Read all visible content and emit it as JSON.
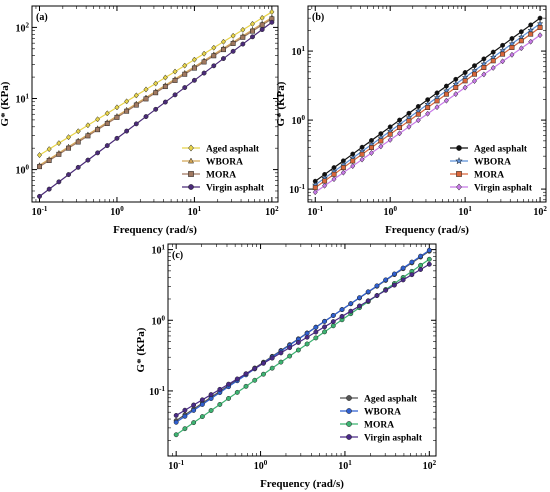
{
  "chart_data": [
    {
      "id": "a",
      "panel_label": "(a)",
      "type": "line",
      "xlabel": "Frequency (rad/s)",
      "ylabel": "G* (KPa)",
      "xscale": "log",
      "yscale": "log",
      "xlim": [
        0.08,
        120
      ],
      "ylim": [
        0.35,
        200
      ],
      "xticks": [
        {
          "value": 0.1,
          "label": "10^-1"
        },
        {
          "value": 1,
          "label": "10^0"
        },
        {
          "value": 10,
          "label": "10^1"
        },
        {
          "value": 100,
          "label": "10^2"
        }
      ],
      "yticks": [
        {
          "value": 1,
          "label": "10^0"
        },
        {
          "value": 10,
          "label": "10^1"
        },
        {
          "value": 100,
          "label": "10^2"
        }
      ],
      "legend_position": "bottom-right",
      "n_points": 25,
      "series": [
        {
          "name": "Aged asphalt",
          "color": "#e8d44a",
          "marker": "diamond",
          "x_range": [
            0.1,
            100
          ],
          "y_range": [
            1.6,
            165
          ]
        },
        {
          "name": "WBORA",
          "color": "#d4a657",
          "marker": "triangle",
          "x_range": [
            0.1,
            100
          ],
          "y_range": [
            1.15,
            138
          ]
        },
        {
          "name": "MORA",
          "color": "#a07860",
          "marker": "square",
          "x_range": [
            0.1,
            100
          ],
          "y_range": [
            1.1,
            132
          ]
        },
        {
          "name": "Virgin asphalt",
          "color": "#4a2a78",
          "marker": "circle",
          "x_range": [
            0.1,
            100
          ],
          "y_range": [
            0.42,
            118
          ]
        }
      ]
    },
    {
      "id": "b",
      "panel_label": "(b)",
      "type": "line",
      "xlabel": "Frequency (rad/s)",
      "ylabel": "G* (KPa)",
      "xscale": "log",
      "yscale": "log",
      "xlim": [
        0.08,
        120
      ],
      "ylim": [
        0.065,
        45
      ],
      "xticks": [
        {
          "value": 0.1,
          "label": "10^-1"
        },
        {
          "value": 1,
          "label": "10^0"
        },
        {
          "value": 10,
          "label": "10^1"
        },
        {
          "value": 100,
          "label": "10^2"
        }
      ],
      "yticks": [
        {
          "value": 0.1,
          "label": "10^-1"
        },
        {
          "value": 1,
          "label": "10^0"
        },
        {
          "value": 10,
          "label": "10^1"
        }
      ],
      "legend_position": "bottom-right",
      "n_points": 25,
      "series": [
        {
          "name": "Aged asphalt",
          "color": "#111111",
          "marker": "circle",
          "x_range": [
            0.1,
            100
          ],
          "y_range": [
            0.13,
            30
          ]
        },
        {
          "name": "WBORA",
          "color": "#5b8fd8",
          "marker": "star",
          "x_range": [
            0.1,
            100
          ],
          "y_range": [
            0.115,
            25
          ]
        },
        {
          "name": "MORA",
          "color": "#d9663a",
          "marker": "square",
          "x_range": [
            0.1,
            100
          ],
          "y_range": [
            0.105,
            22
          ]
        },
        {
          "name": "Virgin asphalt",
          "color": "#c87ae8",
          "marker": "diamond",
          "x_range": [
            0.1,
            100
          ],
          "y_range": [
            0.09,
            17
          ]
        }
      ]
    },
    {
      "id": "c",
      "panel_label": "(c)",
      "type": "line",
      "xlabel": "Frequency (rad/s)",
      "ylabel": "G* (KPa)",
      "xscale": "log",
      "yscale": "log",
      "xlim": [
        0.08,
        120
      ],
      "ylim": [
        0.012,
        12
      ],
      "xticks": [
        {
          "value": 0.1,
          "label": "10^-1"
        },
        {
          "value": 1,
          "label": "10^0"
        },
        {
          "value": 10,
          "label": "10^1"
        },
        {
          "value": 100,
          "label": "10^2"
        }
      ],
      "yticks": [
        {
          "value": 0.1,
          "label": "10^-1"
        },
        {
          "value": 1,
          "label": "10^0"
        },
        {
          "value": 10,
          "label": "10^1"
        }
      ],
      "legend_position": "bottom-right",
      "n_points": 30,
      "series": [
        {
          "name": "Aged asphalt",
          "color": "#555555",
          "marker": "circle",
          "x_range": [
            0.1,
            100
          ],
          "y_range": [
            0.038,
            9.5
          ]
        },
        {
          "name": "WBORA",
          "color": "#2f5fd0",
          "marker": "circle",
          "x_range": [
            0.1,
            100
          ],
          "y_range": [
            0.036,
            9.8
          ]
        },
        {
          "name": "MORA",
          "color": "#3cb371",
          "marker": "circle",
          "x_range": [
            0.1,
            100
          ],
          "y_range": [
            0.024,
            7.3
          ]
        },
        {
          "name": "Virgin asphalt",
          "color": "#4a2a88",
          "marker": "circle",
          "x_range": [
            0.1,
            100
          ],
          "y_range": [
            0.045,
            6.2
          ]
        }
      ]
    }
  ]
}
